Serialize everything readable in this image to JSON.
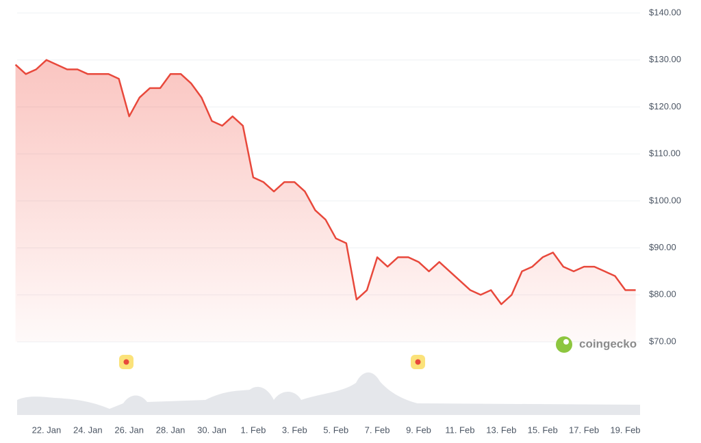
{
  "chart_data": {
    "type": "area-line",
    "watermark": "coingecko",
    "categories": [
      null,
      null,
      null,
      "22. Jan",
      null,
      null,
      null,
      "24. Jan",
      null,
      null,
      null,
      "26. Jan",
      null,
      null,
      null,
      "28. Jan",
      null,
      null,
      null,
      "30. Jan",
      null,
      null,
      null,
      "1. Feb",
      null,
      null,
      null,
      "3. Feb",
      null,
      null,
      null,
      "5. Feb",
      null,
      null,
      null,
      "7. Feb",
      null,
      null,
      null,
      "9. Feb",
      null,
      null,
      null,
      "11. Feb",
      null,
      null,
      null,
      "13. Feb",
      null,
      null,
      null,
      "15. Feb",
      null,
      null,
      null,
      "17. Feb",
      null,
      null,
      null,
      "19. Feb",
      null
    ],
    "values": [
      129,
      127,
      128,
      130,
      129,
      128,
      128,
      127,
      127,
      127,
      126,
      118,
      122,
      124,
      124,
      127,
      127,
      125,
      122,
      117,
      116,
      118,
      116,
      105,
      104,
      102,
      104,
      104,
      102,
      98,
      96,
      92,
      91,
      79,
      81,
      88,
      86,
      88,
      88,
      87,
      85,
      87,
      85,
      83,
      81,
      80,
      81,
      78,
      80,
      85,
      86,
      88,
      89,
      86,
      85,
      86,
      86,
      85,
      84,
      81,
      81
    ],
    "color": "#e8483b",
    "ylim": [
      70,
      140
    ],
    "yticks": [
      {
        "value": 70,
        "label": "$70.00"
      },
      {
        "value": 80,
        "label": "$80.00"
      },
      {
        "value": 90,
        "label": "$90.00"
      },
      {
        "value": 100,
        "label": "$100.00"
      },
      {
        "value": 110,
        "label": "$110.00"
      },
      {
        "value": 120,
        "label": "$120.00"
      },
      {
        "value": 130,
        "label": "$130.00"
      },
      {
        "value": 140,
        "label": "$140.00"
      }
    ],
    "grid": true
  }
}
